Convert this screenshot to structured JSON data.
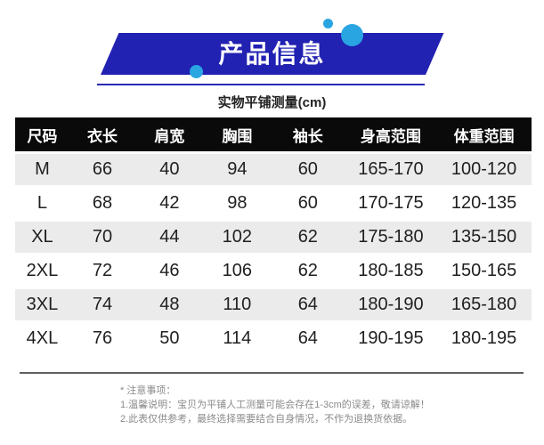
{
  "banner": {
    "title": "产品信息",
    "ribbon_color": "#2121b2",
    "circle_color": "#29a5e2",
    "underline_color": "#2b2bb4"
  },
  "subtitle": "实物平铺测量(cm)",
  "table": {
    "header_bg": "#0a0a0a",
    "stripe_bg": "#ebebeb",
    "headers": [
      "尺码",
      "衣长",
      "肩宽",
      "胸围",
      "袖长",
      "身高范围",
      "体重范围"
    ],
    "col_widths": [
      "10.5%",
      "12.8%",
      "13.2%",
      "13.0%",
      "14.4%",
      "17.7%",
      "18.4%"
    ],
    "rows": [
      [
        "M",
        "66",
        "40",
        "94",
        "60",
        "165-170",
        "100-120"
      ],
      [
        "L",
        "68",
        "42",
        "98",
        "60",
        "170-175",
        "120-135"
      ],
      [
        "XL",
        "70",
        "44",
        "102",
        "62",
        "175-180",
        "135-150"
      ],
      [
        "2XL",
        "72",
        "46",
        "106",
        "62",
        "180-185",
        "150-165"
      ],
      [
        "3XL",
        "74",
        "48",
        "110",
        "64",
        "180-190",
        "165-180"
      ],
      [
        "4XL",
        "76",
        "50",
        "114",
        "64",
        "190-195",
        "180-195"
      ]
    ]
  },
  "notes": {
    "heading": "* 注意事项：",
    "items": [
      "1.温馨说明：宝贝为平铺人工测量可能会存在1-3cm的误差，敬请谅解！",
      "2.此表仅供参考，最终选择需要结合自身情况，不作为退换货依据。"
    ]
  },
  "chart_data": {
    "type": "table",
    "title": "产品信息",
    "subtitle": "实物平铺测量(cm)",
    "columns": [
      "尺码",
      "衣长",
      "肩宽",
      "胸围",
      "袖长",
      "身高范围",
      "体重范围"
    ],
    "rows": [
      [
        "M",
        66,
        40,
        94,
        60,
        "165-170",
        "100-120"
      ],
      [
        "L",
        68,
        42,
        98,
        60,
        "170-175",
        "120-135"
      ],
      [
        "XL",
        70,
        44,
        102,
        62,
        "175-180",
        "135-150"
      ],
      [
        "2XL",
        72,
        46,
        106,
        62,
        "180-185",
        "150-165"
      ],
      [
        "3XL",
        74,
        48,
        110,
        64,
        "180-190",
        "165-180"
      ],
      [
        "4XL",
        76,
        50,
        114,
        64,
        "190-195",
        "180-195"
      ]
    ],
    "units": "cm",
    "notes": [
      "* 注意事项：",
      "1.温馨说明：宝贝为平铺人工测量可能会存在1-3cm的误差，敬请谅解！",
      "2.此表仅供参考，最终选择需要结合自身情况，不作为退换货依据。"
    ]
  }
}
